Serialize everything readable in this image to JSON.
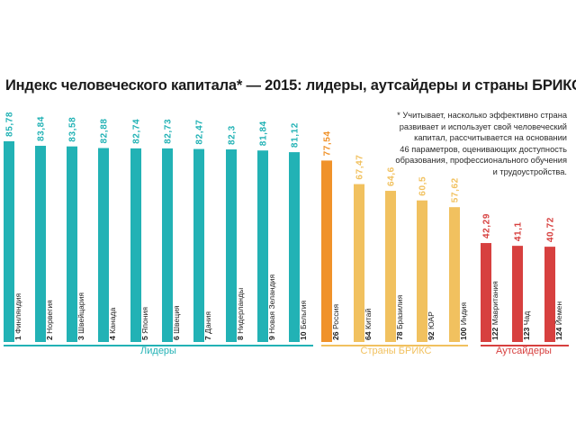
{
  "title": "Индекс человеческого капитала* — 2015: лидеры, аутсайдеры и страны БРИКС",
  "note_lines": [
    "* Учитывает, насколько эффективно страна",
    "развивает и использует свой человеческий",
    "капитал, рассчитывается на основании",
    "46 параметров, оценивающих доступность",
    "образования, профессионального обучения",
    "и трудоустройства."
  ],
  "colors": {
    "leaders": "#22b2b5",
    "brics_first": "#f0922a",
    "brics": "#f1c15f",
    "outsiders": "#d7403f",
    "text": "#222222"
  },
  "chart_data": {
    "type": "bar",
    "title": "Индекс человеческого капитала* — 2015: лидеры, аутсайдеры и страны БРИКС",
    "categories": [
      "1 Финляндия",
      "2 Норвегия",
      "3 Швейцария",
      "4 Канада",
      "5 Япония",
      "6 Швеция",
      "7 Дания",
      "8 Нидерланды",
      "9 Новая Зеландия",
      "10 Бельгия",
      "26 Россия",
      "64 Китай",
      "78 Бразилия",
      "92 ЮАР",
      "100 Индия",
      "122 Мавритания",
      "123 Чад",
      "124 Йемен"
    ],
    "values": [
      85.78,
      83.84,
      83.58,
      82.88,
      82.74,
      82.73,
      82.47,
      82.3,
      81.84,
      81.12,
      77.54,
      67.47,
      64.6,
      60.5,
      57.62,
      42.29,
      41.1,
      40.72
    ],
    "value_labels": [
      "85,78",
      "83,84",
      "83,58",
      "82,88",
      "82,74",
      "82,73",
      "82,47",
      "82,3",
      "81,84",
      "81,12",
      "77,54",
      "67,47",
      "64,6",
      "60,5",
      "57,62",
      "42,29",
      "41,1",
      "40,72"
    ],
    "groups": [
      {
        "name": "Лидеры",
        "color": "#22b2b5",
        "count": 10
      },
      {
        "name": "Страны БРИКС",
        "color": "#f1c15f",
        "count": 5
      },
      {
        "name": "Аутсайдеры",
        "color": "#d7403f",
        "count": 3
      }
    ],
    "grid": false,
    "legend": "bottom"
  }
}
